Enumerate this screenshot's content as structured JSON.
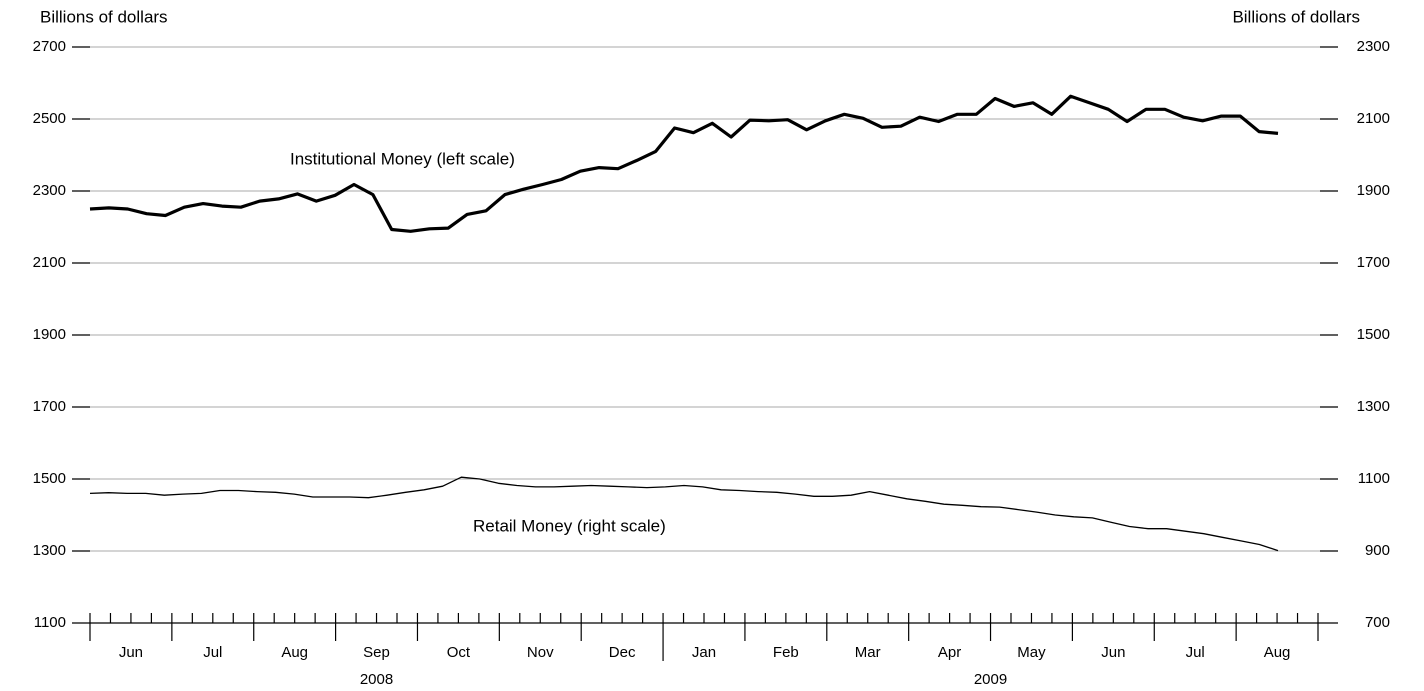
{
  "chart_data": {
    "type": "line",
    "y_label": "Billions of dollars",
    "y2_label": "Billions of dollars",
    "ylim": [
      1100,
      2700
    ],
    "yticks": [
      1100,
      1300,
      1500,
      1700,
      1900,
      2100,
      2300,
      2500,
      2700
    ],
    "y2lim": [
      700,
      2300
    ],
    "y2ticks": [
      700,
      900,
      1100,
      1300,
      1500,
      1700,
      1900,
      2100,
      2300
    ],
    "months": [
      "Jun",
      "Jul",
      "Aug",
      "Sep",
      "Oct",
      "Nov",
      "Dec",
      "Jan",
      "Feb",
      "Mar",
      "Apr",
      "May",
      "Jun",
      "Jul",
      "Aug"
    ],
    "years": [
      "2008",
      "2009"
    ],
    "grid": true,
    "series": [
      {
        "name": "Institutional Money (left scale)",
        "color": "#000000",
        "values": [
          2250,
          2253,
          2250,
          2237,
          2232,
          2255,
          2265,
          2258,
          2255,
          2272,
          2278,
          2292,
          2272,
          2288,
          2318,
          2290,
          2193,
          2188,
          2195,
          2197,
          2235,
          2245,
          2290,
          2305,
          2318,
          2332,
          2355,
          2365,
          2362,
          2385,
          2410,
          2475,
          2462,
          2488,
          2450,
          2497,
          2495,
          2498,
          2470,
          2495,
          2513,
          2502,
          2477,
          2480,
          2505,
          2493,
          2513,
          2513,
          2557,
          2535,
          2545,
          2513,
          2563,
          2545,
          2527,
          2493,
          2527,
          2527,
          2505,
          2495,
          2508,
          2508,
          2465,
          2460
        ]
      },
      {
        "name": "Retail Money (right scale)",
        "color": "#000000",
        "axis": "y2",
        "values": [
          1060,
          1062,
          1060,
          1060,
          1055,
          1058,
          1060,
          1068,
          1068,
          1065,
          1063,
          1058,
          1050,
          1050,
          1050,
          1048,
          1055,
          1063,
          1070,
          1080,
          1105,
          1100,
          1088,
          1082,
          1078,
          1078,
          1080,
          1082,
          1080,
          1078,
          1076,
          1078,
          1082,
          1078,
          1070,
          1068,
          1065,
          1063,
          1058,
          1052,
          1052,
          1055,
          1065,
          1055,
          1045,
          1038,
          1030,
          1027,
          1023,
          1022,
          1015,
          1008,
          1000,
          995,
          992,
          980,
          968,
          962,
          962,
          955,
          948,
          938,
          928,
          918,
          901
        ]
      }
    ]
  }
}
